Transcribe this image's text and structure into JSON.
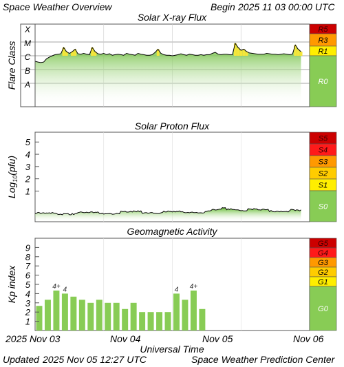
{
  "header": {
    "title": "Space Weather Overview",
    "begin_label": "Begin",
    "begin_time": "2025 11 03 00:00 UTC"
  },
  "footer": {
    "updated_label": "Updated",
    "updated_time": "2025 Nov 05 12:27 UTC",
    "credit": "Space Weather Prediction Center"
  },
  "chart_data": [
    {
      "type": "area",
      "title": "Solar X-ray Flux",
      "ylabel": "Flare Class",
      "scale": "log",
      "class_labels": [
        "X",
        "M",
        "C",
        "B",
        "A"
      ],
      "x_range_days": [
        0,
        4
      ],
      "series": [
        {
          "x_hours": [
            0,
            1,
            2,
            3,
            4,
            5,
            6,
            7,
            8,
            9,
            10,
            11,
            12,
            13,
            14,
            15,
            16,
            17,
            18,
            19,
            20,
            21,
            22,
            23,
            24,
            25,
            26,
            27,
            28,
            29,
            30,
            31,
            32,
            33,
            34,
            35,
            36,
            37,
            38,
            39,
            40,
            41,
            42,
            43,
            44,
            45,
            46,
            47,
            48,
            49,
            50,
            51,
            52,
            53,
            54,
            55,
            56,
            57,
            58,
            59,
            60,
            61,
            62,
            63,
            64,
            65,
            66,
            67,
            68,
            69,
            70,
            71,
            72,
            73,
            74,
            75,
            76,
            77,
            78,
            79,
            80,
            81,
            82,
            83,
            84,
            85,
            86,
            87,
            88,
            89,
            90,
            91,
            92,
            93
          ],
          "flux_wm2": [
            4e-07,
            3.5e-07,
            3.2e-07,
            3.5e-07,
            6e-07,
            8e-07,
            1e-06,
            1.2e-06,
            1.3e-06,
            1.4e-06,
            4e-06,
            2e-06,
            1.5e-06,
            2e-06,
            3e-06,
            1.4e-06,
            1.3e-06,
            1.5e-06,
            1.3e-06,
            1.2e-06,
            4e-06,
            2e-06,
            1.4e-06,
            1.3e-06,
            1.5e-06,
            1.2e-06,
            1.4e-06,
            1.1e-06,
            1.2e-06,
            1.3e-06,
            1.2e-06,
            1.1e-06,
            1.5e-06,
            1.3e-06,
            1.2e-06,
            1.1e-06,
            1.5e-06,
            1.3e-06,
            1.2e-06,
            1.1e-06,
            1.1e-06,
            1.2e-06,
            1.8e-06,
            3e-06,
            1.5e-06,
            1.2e-06,
            1.1e-06,
            1.1e-06,
            1e-06,
            1.1e-06,
            1.2e-06,
            1.4e-06,
            1.2e-06,
            1.1e-06,
            1.3e-06,
            1.2e-06,
            1.1e-06,
            1.1e-06,
            1.2e-06,
            1.1e-06,
            1.2e-06,
            1.2e-06,
            1.5e-06,
            1.8e-06,
            1.3e-06,
            1.2e-06,
            1.3e-06,
            1.3e-06,
            1.2e-06,
            1.2e-06,
            8e-06,
            4e-06,
            2.5e-06,
            3e-06,
            2e-06,
            1.6e-06,
            1.5e-06,
            1.4e-06,
            1.3e-06,
            1.3e-06,
            1.3e-06,
            1.5e-06,
            1.4e-06,
            1.3e-06,
            1.3e-06,
            1.2e-06,
            1.3e-06,
            1.4e-06,
            1.3e-06,
            1.2e-06,
            1.3e-06,
            6e-06,
            3e-06,
            2e-06
          ]
        }
      ],
      "scale_bar": [
        {
          "label": "R5",
          "color": "#cc0000"
        },
        {
          "label": "R3",
          "color": "#ff9900"
        },
        {
          "label": "R1",
          "color": "#ffee00"
        },
        {
          "label": "R0",
          "color": "#88cc55"
        }
      ]
    },
    {
      "type": "area",
      "title": "Solar Proton Flux",
      "ylabel": "Log10(pfu)",
      "ylabel_main": "Log",
      "ylabel_sub": "10",
      "ylabel_rest": "(pfu)",
      "yticks": [
        1,
        2,
        3,
        4,
        5
      ],
      "ylim": [
        -1.5,
        5.8
      ],
      "x_range_days": [
        0,
        4
      ],
      "series": [
        {
          "x_hours": [
            0,
            6,
            12,
            18,
            24,
            30,
            36,
            42,
            48,
            54,
            60,
            63,
            66,
            69,
            72,
            78,
            84,
            90,
            93
          ],
          "log_pfu": [
            -0.85,
            -0.82,
            -0.83,
            -0.8,
            -0.78,
            -0.76,
            -0.72,
            -0.75,
            -0.72,
            -0.7,
            -0.68,
            -0.55,
            -0.45,
            -0.42,
            -0.5,
            -0.55,
            -0.58,
            -0.6,
            -0.62
          ]
        }
      ],
      "scale_bar": [
        {
          "label": "S5",
          "color": "#cc0000"
        },
        {
          "label": "S4",
          "color": "#ff1a1a"
        },
        {
          "label": "S3",
          "color": "#ff9900"
        },
        {
          "label": "S2",
          "color": "#ffcc00"
        },
        {
          "label": "S1",
          "color": "#ffee00"
        },
        {
          "label": "S0",
          "color": "#88cc55"
        }
      ]
    },
    {
      "type": "bar",
      "title": "Geomagnetic Activity",
      "ylabel": "Kp index",
      "yticks": [
        1,
        2,
        3,
        4,
        5,
        6,
        7,
        8,
        9
      ],
      "ylim": [
        0,
        10
      ],
      "bar_interval_hours": 3,
      "values": [
        2.67,
        3.33,
        4.33,
        4.0,
        3.67,
        3.33,
        3.0,
        3.33,
        3.0,
        3.0,
        2.33,
        3.0,
        2.0,
        2.0,
        2.0,
        2.0,
        4.0,
        3.33,
        4.33,
        2.33
      ],
      "value_labels": [
        "",
        "",
        "4+",
        "4",
        "",
        "",
        "",
        "",
        "",
        "",
        "",
        "",
        "",
        "",
        "",
        "",
        "4",
        "",
        "4+",
        ""
      ],
      "bar_color": "#88cc55",
      "scale_bar": [
        {
          "label": "G5",
          "color": "#cc0000"
        },
        {
          "label": "G4",
          "color": "#ff1a1a"
        },
        {
          "label": "G3",
          "color": "#ff9900"
        },
        {
          "label": "G2",
          "color": "#ffcc00"
        },
        {
          "label": "G1",
          "color": "#ffee00"
        },
        {
          "label": "G0",
          "color": "#88cc55"
        }
      ]
    }
  ],
  "x_axis": {
    "label": "Universal Time",
    "ticks": [
      "2025 Nov 03",
      "Nov 04",
      "Nov 05",
      "Nov 06"
    ]
  }
}
